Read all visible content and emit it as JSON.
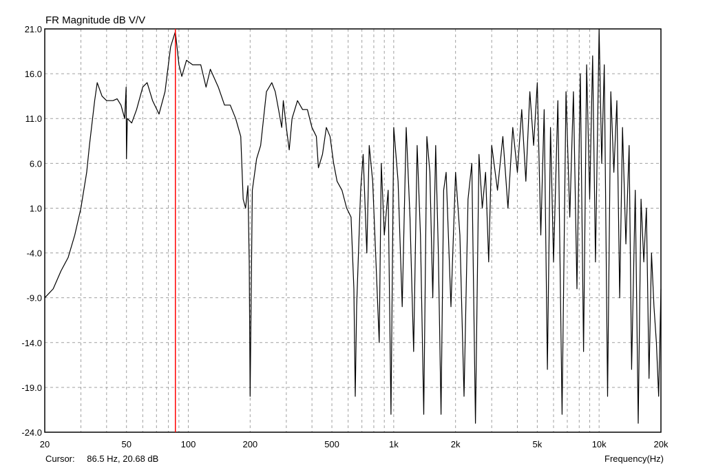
{
  "chart_data": {
    "type": "line",
    "title": "FR Magnitude dB V/V",
    "xlabel": "Frequency(Hz)",
    "ylabel": "",
    "xscale": "log",
    "xlim": [
      20,
      20000
    ],
    "ylim": [
      -24,
      21
    ],
    "grid": true,
    "y_ticks": [
      "21.0",
      "16.0",
      "11.0",
      "6.0",
      "1.0",
      "-4.0",
      "-9.0",
      "-14.0",
      "-19.0",
      "-24.0"
    ],
    "x_ticks": [
      {
        "value": 20,
        "label": "20"
      },
      {
        "value": 50,
        "label": "50"
      },
      {
        "value": 100,
        "label": "100"
      },
      {
        "value": 200,
        "label": "200"
      },
      {
        "value": 500,
        "label": "500"
      },
      {
        "value": 1000,
        "label": "1k"
      },
      {
        "value": 2000,
        "label": "2k"
      },
      {
        "value": 5000,
        "label": "5k"
      },
      {
        "value": 10000,
        "label": "10k"
      },
      {
        "value": 20000,
        "label": "20k"
      }
    ],
    "series": [
      {
        "color": "#000000",
        "points": [
          [
            20,
            -9
          ],
          [
            22,
            -8
          ],
          [
            24,
            -6
          ],
          [
            26,
            -4.5
          ],
          [
            28,
            -2
          ],
          [
            30,
            1
          ],
          [
            32,
            5
          ],
          [
            33,
            8
          ],
          [
            35,
            13
          ],
          [
            36,
            15
          ],
          [
            38,
            13.5
          ],
          [
            40,
            13
          ],
          [
            43,
            13
          ],
          [
            45,
            13.2
          ],
          [
            47,
            12.5
          ],
          [
            49,
            11
          ],
          [
            49.8,
            14.5
          ],
          [
            50,
            6.5
          ],
          [
            50.5,
            11
          ],
          [
            53,
            10.5
          ],
          [
            56,
            12
          ],
          [
            60,
            14.5
          ],
          [
            63,
            15
          ],
          [
            67,
            13
          ],
          [
            72,
            11.5
          ],
          [
            77,
            14
          ],
          [
            82,
            19
          ],
          [
            86.5,
            20.7
          ],
          [
            90,
            17
          ],
          [
            93,
            15.7
          ],
          [
            98,
            17.5
          ],
          [
            105,
            17
          ],
          [
            115,
            17
          ],
          [
            122,
            14.5
          ],
          [
            128,
            16.5
          ],
          [
            140,
            14.5
          ],
          [
            150,
            12.5
          ],
          [
            160,
            12.5
          ],
          [
            170,
            11
          ],
          [
            180,
            9
          ],
          [
            185,
            2
          ],
          [
            190,
            1
          ],
          [
            195,
            3.5
          ],
          [
            198,
            -5
          ],
          [
            200,
            -20
          ],
          [
            205,
            3
          ],
          [
            215,
            6.5
          ],
          [
            225,
            8
          ],
          [
            240,
            14
          ],
          [
            255,
            15
          ],
          [
            265,
            14
          ],
          [
            275,
            12
          ],
          [
            285,
            10
          ],
          [
            290,
            13
          ],
          [
            300,
            10
          ],
          [
            310,
            7.5
          ],
          [
            320,
            11
          ],
          [
            340,
            13
          ],
          [
            360,
            12
          ],
          [
            380,
            12
          ],
          [
            400,
            10
          ],
          [
            420,
            9
          ],
          [
            430,
            5.5
          ],
          [
            450,
            7
          ],
          [
            470,
            10
          ],
          [
            490,
            9
          ],
          [
            510,
            6
          ],
          [
            530,
            4
          ],
          [
            560,
            3
          ],
          [
            590,
            1
          ],
          [
            620,
            0
          ],
          [
            640,
            -8
          ],
          [
            650,
            -20
          ],
          [
            660,
            -10
          ],
          [
            690,
            3
          ],
          [
            710,
            7
          ],
          [
            740,
            -4
          ],
          [
            760,
            8
          ],
          [
            790,
            4
          ],
          [
            820,
            -5
          ],
          [
            850,
            -14
          ],
          [
            870,
            6
          ],
          [
            900,
            -2
          ],
          [
            940,
            3
          ],
          [
            970,
            -22
          ],
          [
            1000,
            10
          ],
          [
            1050,
            4
          ],
          [
            1100,
            -10
          ],
          [
            1150,
            10
          ],
          [
            1200,
            0
          ],
          [
            1250,
            -15
          ],
          [
            1300,
            8
          ],
          [
            1350,
            -2
          ],
          [
            1400,
            -22
          ],
          [
            1450,
            9
          ],
          [
            1500,
            5
          ],
          [
            1550,
            -9
          ],
          [
            1600,
            8
          ],
          [
            1650,
            -4
          ],
          [
            1700,
            -22
          ],
          [
            1750,
            3
          ],
          [
            1800,
            5
          ],
          [
            1900,
            -10
          ],
          [
            2000,
            5
          ],
          [
            2100,
            -2
          ],
          [
            2200,
            -20
          ],
          [
            2300,
            2
          ],
          [
            2400,
            6
          ],
          [
            2500,
            -23
          ],
          [
            2600,
            7
          ],
          [
            2700,
            1
          ],
          [
            2800,
            5
          ],
          [
            2900,
            -5
          ],
          [
            3000,
            8
          ],
          [
            3200,
            3
          ],
          [
            3400,
            9
          ],
          [
            3600,
            1
          ],
          [
            3800,
            10
          ],
          [
            4000,
            5
          ],
          [
            4200,
            12
          ],
          [
            4400,
            4
          ],
          [
            4600,
            14
          ],
          [
            4800,
            8
          ],
          [
            5000,
            15
          ],
          [
            5200,
            -2
          ],
          [
            5400,
            12
          ],
          [
            5600,
            -17
          ],
          [
            5800,
            10
          ],
          [
            6000,
            -5
          ],
          [
            6300,
            13
          ],
          [
            6600,
            -22
          ],
          [
            6900,
            14
          ],
          [
            7200,
            0
          ],
          [
            7500,
            14
          ],
          [
            7800,
            -8
          ],
          [
            8100,
            16
          ],
          [
            8400,
            -15
          ],
          [
            8700,
            17
          ],
          [
            9000,
            2
          ],
          [
            9300,
            18
          ],
          [
            9600,
            -5
          ],
          [
            10000,
            21
          ],
          [
            10300,
            6
          ],
          [
            10600,
            17
          ],
          [
            11000,
            -20
          ],
          [
            11400,
            14
          ],
          [
            11800,
            5
          ],
          [
            12200,
            13
          ],
          [
            12600,
            -9
          ],
          [
            13000,
            10
          ],
          [
            13500,
            -3
          ],
          [
            14000,
            8
          ],
          [
            14400,
            -17
          ],
          [
            15000,
            3
          ],
          [
            15500,
            -23
          ],
          [
            16000,
            2
          ],
          [
            16500,
            -5
          ],
          [
            17000,
            1
          ],
          [
            17500,
            -18
          ],
          [
            18000,
            -4
          ],
          [
            18500,
            -10
          ],
          [
            19000,
            -14
          ],
          [
            19500,
            -20
          ],
          [
            20000,
            -8
          ]
        ]
      }
    ],
    "cursor": {
      "frequency": 86.5,
      "value": 20.68,
      "color": "#ff0000"
    }
  },
  "cursor_readout": {
    "label": "Cursor:",
    "value": "86.5 Hz, 20.68 dB"
  }
}
